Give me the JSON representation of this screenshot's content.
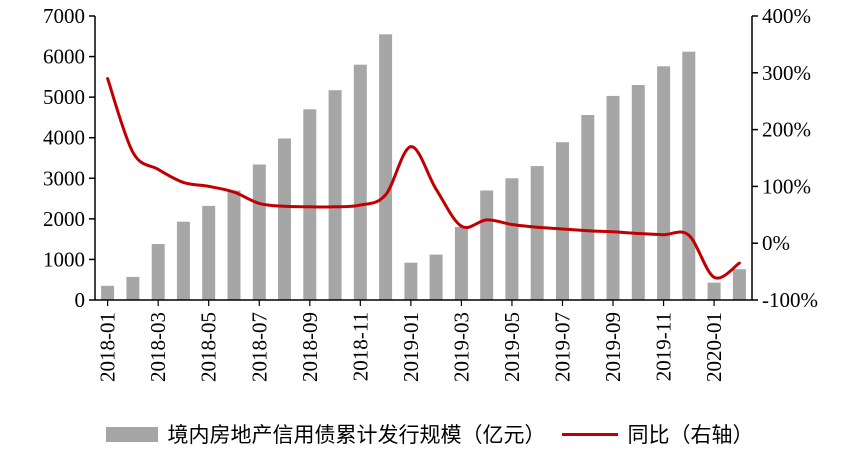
{
  "chart_data": {
    "type": "bar+line",
    "title": "",
    "grid": false,
    "legend_position": "bottom",
    "categories": [
      "2018-01",
      "2018-02",
      "2018-03",
      "2018-04",
      "2018-05",
      "2018-06",
      "2018-07",
      "2018-08",
      "2018-09",
      "2018-10",
      "2018-11",
      "2018-12",
      "2019-01",
      "2019-02",
      "2019-03",
      "2019-04",
      "2019-05",
      "2019-06",
      "2019-07",
      "2019-08",
      "2019-09",
      "2019-10",
      "2019-11",
      "2019-12",
      "2020-01",
      "2020-02"
    ],
    "x_label_interval": 2,
    "x_tick_labels": [
      "2018-01",
      "2018-03",
      "2018-05",
      "2018-07",
      "2018-09",
      "2018-11",
      "2019-01",
      "2019-03",
      "2019-05",
      "2019-07",
      "2019-09",
      "2019-11",
      "2020-01"
    ],
    "series": [
      {
        "name": "境内房地产信用债累计发行规模（亿元）",
        "type": "bar",
        "axis": "left",
        "color": "#a6a6a6",
        "values": [
          350,
          570,
          1380,
          1930,
          2320,
          2700,
          3340,
          3980,
          4700,
          5170,
          5800,
          6550,
          920,
          1120,
          1800,
          2700,
          3000,
          3300,
          3890,
          4560,
          5030,
          5300,
          5760,
          6120,
          430,
          760
        ]
      },
      {
        "name": "同比（右轴）",
        "type": "line",
        "axis": "right",
        "color": "#c00000",
        "values": [
          290,
          160,
          130,
          107,
          100,
          90,
          70,
          65,
          64,
          64,
          67,
          85,
          170,
          95,
          30,
          41,
          33,
          28,
          25,
          22,
          20,
          17,
          15,
          14,
          -60,
          -35
        ]
      }
    ],
    "left_axis": {
      "min": 0,
      "max": 7000,
      "step": 1000,
      "ticks": [
        "0",
        "1000",
        "2000",
        "3000",
        "4000",
        "5000",
        "6000",
        "7000"
      ]
    },
    "right_axis": {
      "min": -100,
      "max": 400,
      "step": 100,
      "ticks": [
        "-100%",
        "0%",
        "100%",
        "200%",
        "300%",
        "400%"
      ]
    }
  },
  "legend": {
    "bar_label": "境内房地产信用债累计发行规模（亿元）",
    "line_label": "同比（右轴）"
  }
}
